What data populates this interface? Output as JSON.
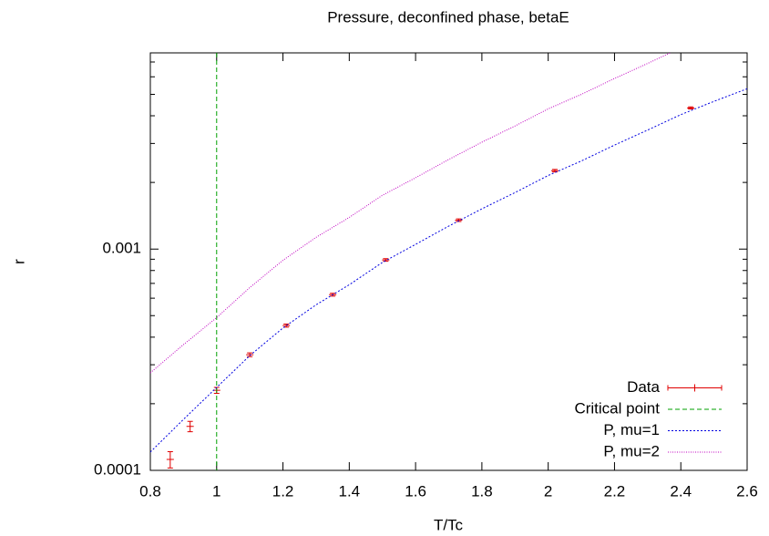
{
  "chart_data": {
    "type": "line",
    "title": "Pressure, deconfined phase, betaE",
    "xlabel": "T/Tc",
    "ylabel": "r",
    "xlim": [
      0.8,
      2.6
    ],
    "xticks": [
      0.8,
      1,
      1.2,
      1.4,
      1.6,
      1.8,
      2,
      2.2,
      2.4,
      2.6
    ],
    "ylim": [
      0.0001,
      0.0077
    ],
    "ylog": true,
    "yticks": [
      0.0001,
      0.001
    ],
    "yminorticks": [
      0.0002,
      0.0003,
      0.0004,
      0.0005,
      0.0006,
      0.0007,
      0.0008,
      0.0009,
      0.002,
      0.003,
      0.004,
      0.005,
      0.006,
      0.007
    ],
    "legend": "lower right",
    "series": [
      {
        "name": "Data",
        "kind": "errorbar",
        "color": "#e00000",
        "x": [
          0.86,
          0.92,
          1.0,
          1.1,
          1.21,
          1.35,
          1.51,
          1.73,
          2.02,
          2.43
        ],
        "values": [
          0.000112,
          0.000158,
          0.00023,
          0.000333,
          0.000451,
          0.000622,
          0.000893,
          0.00135,
          0.00226,
          0.00434
        ],
        "yerr": [
          9.5e-06,
          8.5e-06,
          7e-06,
          6.5e-06,
          7e-06,
          9e-06,
          1.2e-05,
          1.8e-05,
          3e-05,
          5e-05
        ]
      },
      {
        "name": "Critical point",
        "kind": "vline",
        "color": "#00a000",
        "x": 1
      },
      {
        "name": "P, mu=1",
        "kind": "curve",
        "color": "#0000e0",
        "dash": "2,2",
        "x": [
          0.8,
          0.9,
          1.0,
          1.1,
          1.2,
          1.3,
          1.4,
          1.5,
          1.6,
          1.7,
          1.8,
          1.9,
          2.0,
          2.1,
          2.2,
          2.3,
          2.4,
          2.5,
          2.6
        ],
        "values": [
          0.000121,
          0.00017,
          0.000237,
          0.00033,
          0.00044,
          0.00056,
          0.00069,
          0.00087,
          0.00105,
          0.00127,
          0.00152,
          0.0018,
          0.00215,
          0.0025,
          0.00295,
          0.00345,
          0.00405,
          0.00465,
          0.0053
        ]
      },
      {
        "name": "P, mu=2",
        "kind": "curve",
        "color": "#c000c0",
        "dash": "1,1.5",
        "x": [
          0.8,
          0.9,
          1.0,
          1.1,
          1.2,
          1.3,
          1.4,
          1.5,
          1.6,
          1.7,
          1.8,
          1.9,
          2.0,
          2.1,
          2.2,
          2.3,
          2.4
        ],
        "values": [
          0.000276,
          0.00037,
          0.00049,
          0.00067,
          0.00089,
          0.00113,
          0.00139,
          0.00175,
          0.0021,
          0.00254,
          0.00304,
          0.0036,
          0.0043,
          0.005,
          0.0059,
          0.0069,
          0.0081
        ]
      }
    ]
  }
}
